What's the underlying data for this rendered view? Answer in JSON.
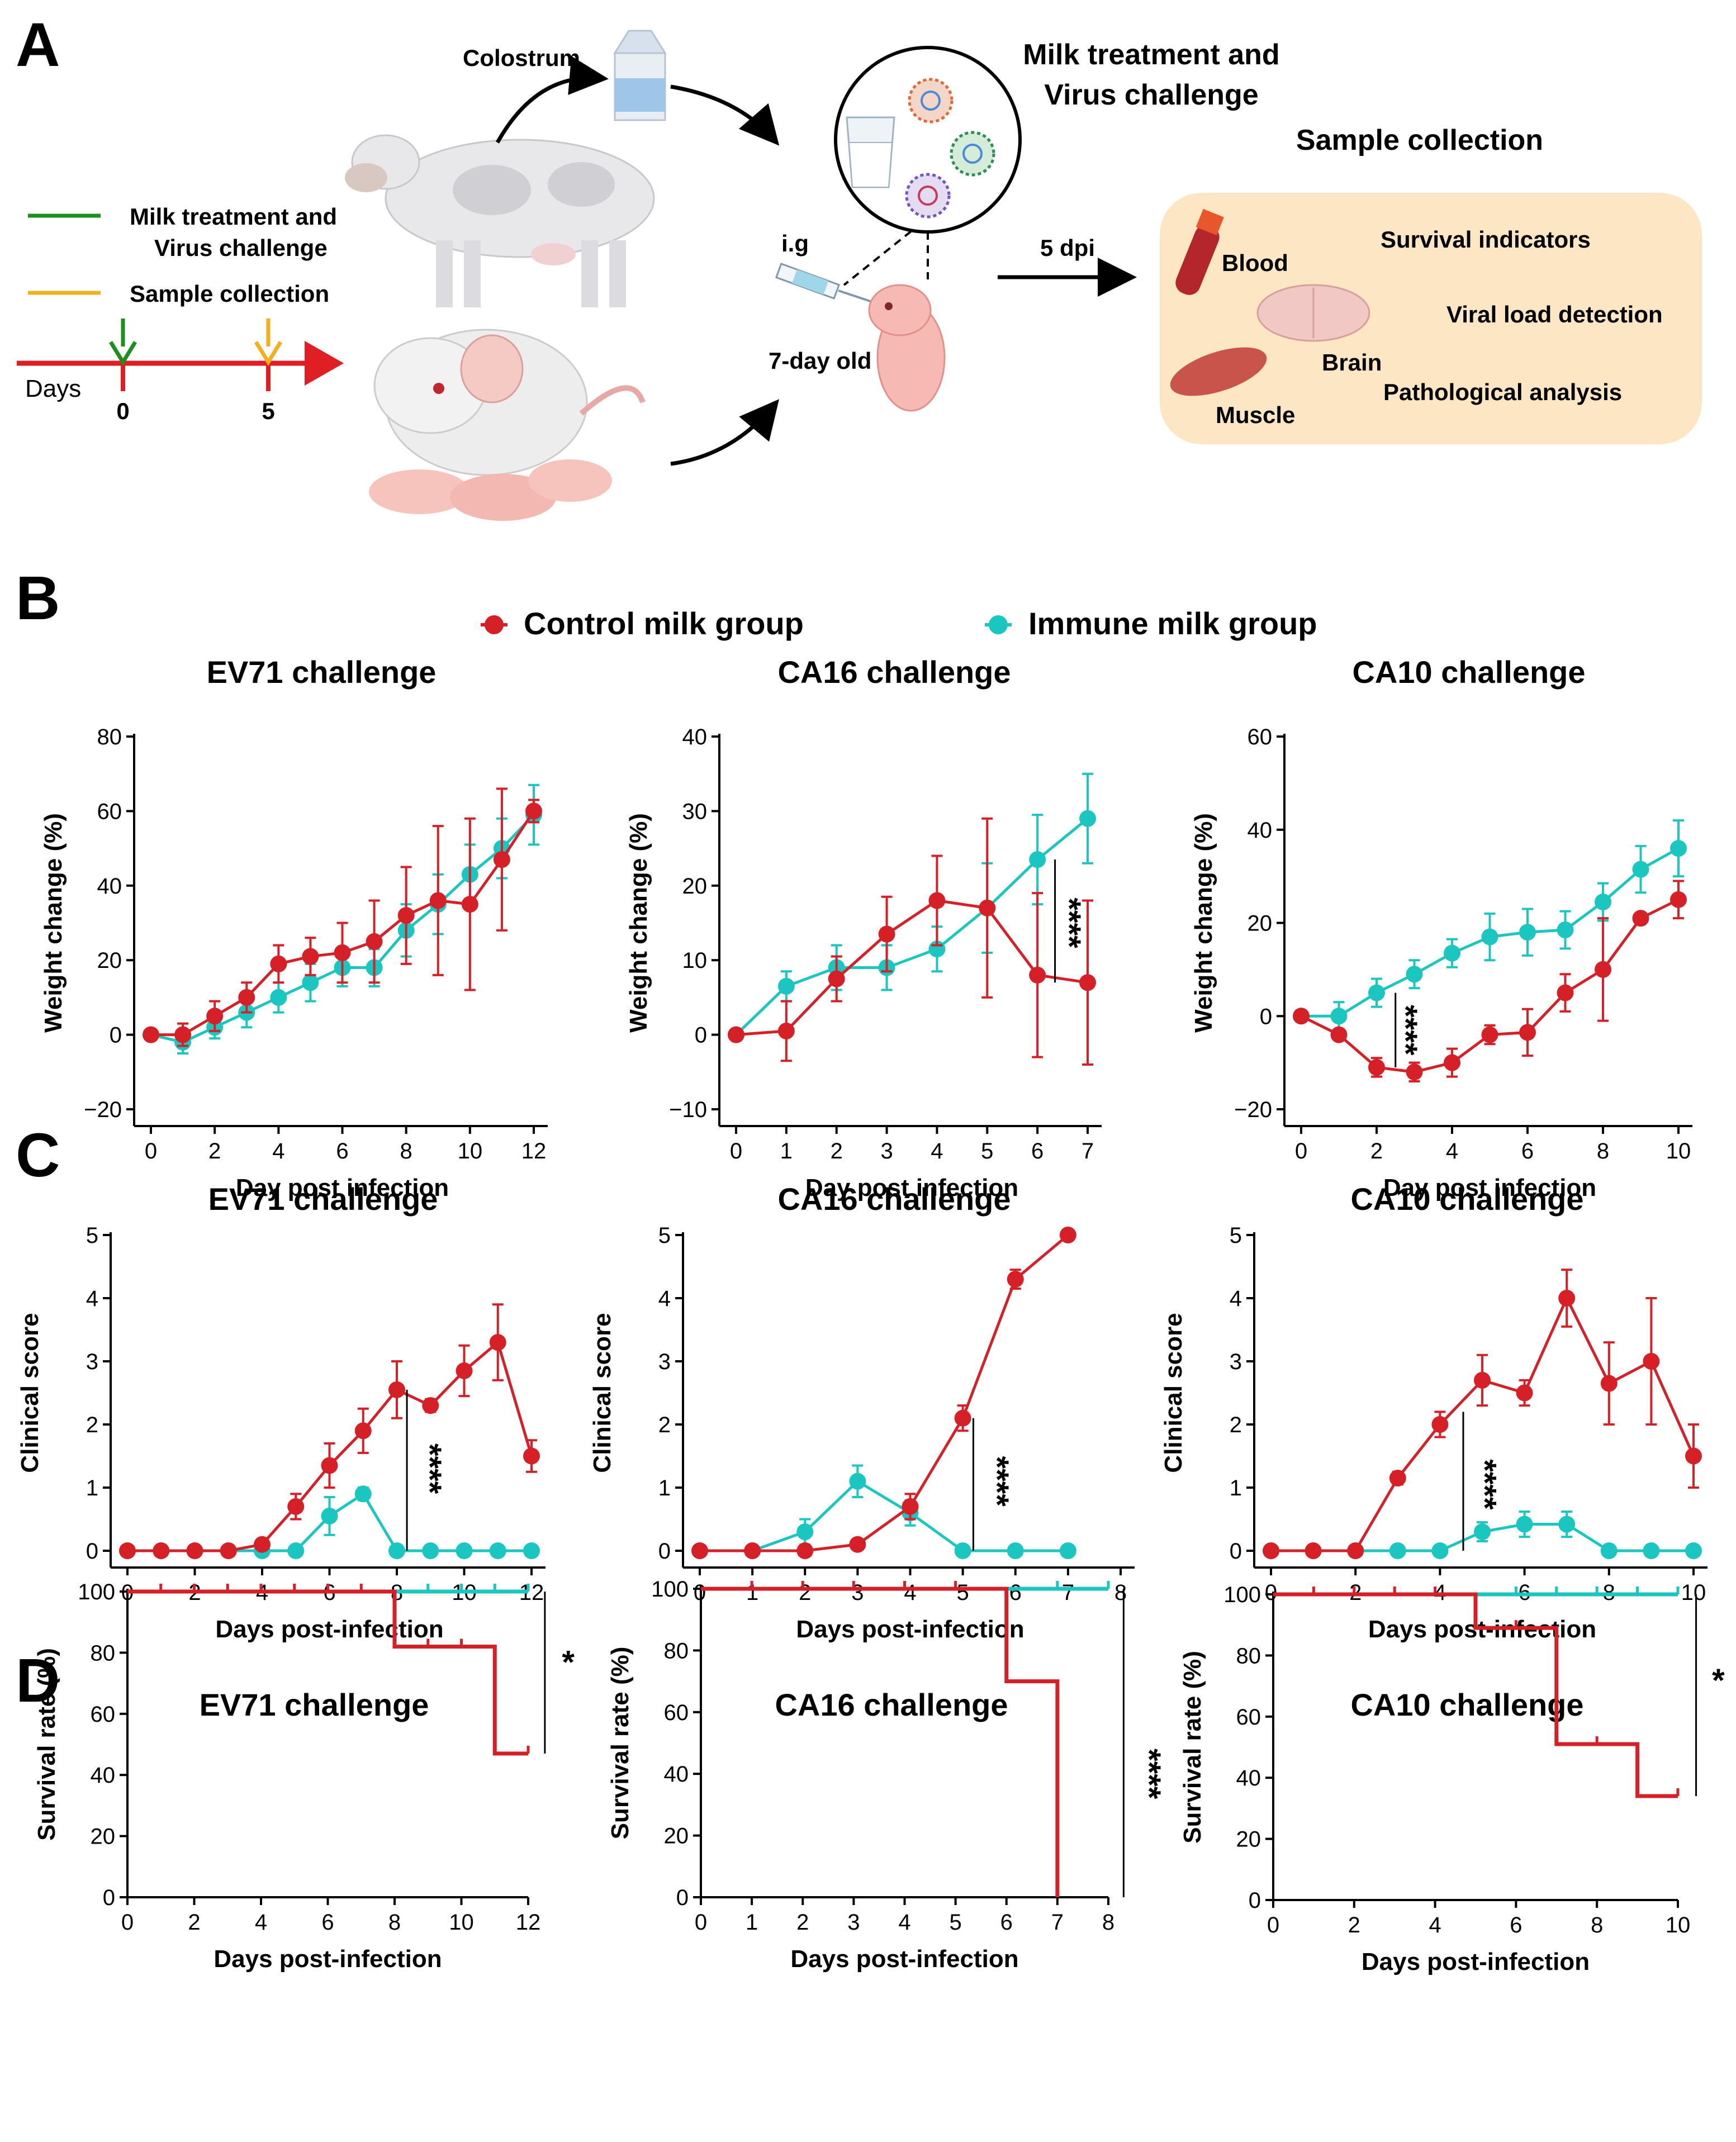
{
  "colors": {
    "control": "#d62028",
    "immune": "#1bc6c0",
    "axis": "#000000",
    "timeline_red": "#e01f25",
    "green_arrow": "#1e8f1e",
    "yellow_arrow": "#f2b01e",
    "panel_bg": "#fce6c4"
  },
  "panel_a": {
    "label": "A",
    "colostrum": "Colostrum",
    "legend_green": [
      "Milk treatment and",
      "Virus challenge"
    ],
    "legend_yellow": "Sample collection",
    "days_label": "Days",
    "day0": "0",
    "day5": "5",
    "milk_title": [
      "Milk treatment and",
      "Virus challenge"
    ],
    "ig": "i.g",
    "pup_age": "7-day old",
    "dpi": "5 dpi",
    "sample_title": "Sample collection",
    "samples": {
      "blood": "Blood",
      "brain": "Brain",
      "muscle": "Muscle",
      "survival": "Survival indicators",
      "viral": "Viral load detection",
      "pathology": "Pathological analysis"
    }
  },
  "legend": {
    "control": "Control milk group",
    "immune": "Immune milk group"
  },
  "row_labels": {
    "B": "B",
    "C": "C",
    "D": "D"
  },
  "chart_data": [
    {
      "id": "b1",
      "type": "line",
      "title": "EV71 challenge",
      "xlabel": "Day post infection",
      "ylabel": "Weight change (%)",
      "xlim": [
        0,
        12
      ],
      "xticks": [
        0,
        2,
        4,
        6,
        8,
        10,
        12
      ],
      "ylim": [
        -20,
        80
      ],
      "yticks": [
        -20,
        0,
        20,
        40,
        60,
        80
      ],
      "series": [
        {
          "name": "Control milk group",
          "x": [
            0,
            1,
            2,
            3,
            4,
            5,
            6,
            7,
            8,
            9,
            10,
            11,
            12
          ],
          "y": [
            0,
            0,
            5,
            10,
            19,
            21,
            22,
            25,
            32,
            36,
            35,
            47,
            60
          ],
          "err": [
            0,
            3,
            4,
            4,
            5,
            5,
            8,
            11,
            13,
            20,
            23,
            19,
            3
          ]
        },
        {
          "name": "Immune milk group",
          "x": [
            0,
            1,
            2,
            3,
            4,
            5,
            6,
            7,
            8,
            9,
            10,
            11,
            12
          ],
          "y": [
            0,
            -2,
            2,
            6,
            10,
            14,
            18,
            18,
            28,
            35,
            43,
            50,
            59
          ],
          "err": [
            0,
            3,
            3,
            4,
            4,
            5,
            5,
            5,
            7,
            8,
            8,
            8,
            8
          ]
        }
      ]
    },
    {
      "id": "b2",
      "type": "line",
      "title": "CA16 challenge",
      "xlabel": "Day post infection",
      "ylabel": "Weight change (%)",
      "xlim": [
        0,
        7
      ],
      "xticks": [
        0,
        1,
        2,
        3,
        4,
        5,
        6,
        7
      ],
      "ylim": [
        -10,
        40
      ],
      "yticks": [
        -10,
        0,
        10,
        20,
        30,
        40
      ],
      "annotation": "****",
      "series": [
        {
          "name": "Control milk group",
          "x": [
            0,
            1,
            2,
            3,
            4,
            5,
            6,
            7
          ],
          "y": [
            0,
            0.5,
            7.5,
            13.5,
            18,
            17,
            8,
            7
          ],
          "err": [
            0,
            4,
            3,
            5,
            6,
            12,
            11,
            11
          ]
        },
        {
          "name": "Immune milk group",
          "x": [
            0,
            1,
            2,
            3,
            4,
            5,
            6,
            7
          ],
          "y": [
            0,
            6.5,
            9,
            9,
            11.5,
            17,
            23.5,
            29
          ],
          "err": [
            0,
            2,
            3,
            3,
            3,
            6,
            6,
            6
          ]
        }
      ]
    },
    {
      "id": "b3",
      "type": "line",
      "title": "CA10 challenge",
      "xlabel": "Day post infection",
      "ylabel": "Weight change (%)",
      "xlim": [
        0,
        10
      ],
      "xticks": [
        0,
        2,
        4,
        6,
        8,
        10
      ],
      "ylim": [
        -20,
        60
      ],
      "yticks": [
        -20,
        0,
        20,
        40,
        60
      ],
      "annotation": "****",
      "series": [
        {
          "name": "Control milk group",
          "x": [
            0,
            1,
            2,
            3,
            4,
            5,
            6,
            7,
            8,
            9,
            10
          ],
          "y": [
            0,
            -4,
            -11,
            -12,
            -10,
            -4,
            -3.5,
            5,
            10,
            21,
            25
          ],
          "err": [
            0,
            1,
            2,
            2,
            3,
            2,
            5,
            4,
            11,
            1,
            4
          ]
        },
        {
          "name": "Immune milk group",
          "x": [
            0,
            1,
            2,
            3,
            4,
            5,
            6,
            7,
            8,
            9,
            10
          ],
          "y": [
            0,
            0,
            5,
            9,
            13.5,
            17,
            18,
            18.5,
            24.5,
            31.5,
            36
          ],
          "err": [
            0,
            3,
            3,
            3,
            3,
            5,
            5,
            4,
            4,
            5,
            6
          ]
        }
      ]
    },
    {
      "id": "c1",
      "type": "line",
      "title": "EV71 challenge",
      "xlabel": "Days post-infection",
      "ylabel": "Clinical score",
      "xlim": [
        0,
        12
      ],
      "xticks": [
        0,
        2,
        4,
        6,
        8,
        10,
        12
      ],
      "ylim": [
        0,
        5
      ],
      "yticks": [
        0,
        1,
        2,
        3,
        4,
        5
      ],
      "annotation": "****",
      "series": [
        {
          "name": "Control milk group",
          "x": [
            0,
            1,
            2,
            3,
            4,
            5,
            6,
            7,
            8,
            9,
            10,
            11,
            12
          ],
          "y": [
            0,
            0,
            0,
            0,
            0.1,
            0.7,
            1.35,
            1.9,
            2.55,
            2.3,
            2.85,
            3.3,
            1.5
          ],
          "err": [
            0,
            0,
            0,
            0,
            0.05,
            0.2,
            0.35,
            0.35,
            0.45,
            0.1,
            0.4,
            0.6,
            0.25
          ]
        },
        {
          "name": "Immune milk group",
          "x": [
            0,
            1,
            2,
            3,
            4,
            5,
            6,
            7,
            8,
            9,
            10,
            11,
            12
          ],
          "y": [
            0,
            0,
            0,
            0,
            0,
            0,
            0.55,
            0.9,
            0,
            0,
            0,
            0,
            0
          ],
          "err": [
            0,
            0,
            0,
            0,
            0,
            0,
            0.3,
            0.1,
            0,
            0,
            0,
            0,
            0
          ]
        }
      ]
    },
    {
      "id": "c2",
      "type": "line",
      "title": "CA16 challenge",
      "xlabel": "Days post-infection",
      "ylabel": "Clinical score",
      "xlim": [
        0,
        8
      ],
      "xticks": [
        0,
        1,
        2,
        3,
        4,
        5,
        6,
        7,
        8
      ],
      "ylim": [
        0,
        5
      ],
      "yticks": [
        0,
        1,
        2,
        3,
        4,
        5
      ],
      "annotation": "****",
      "series": [
        {
          "name": "Control milk group",
          "x": [
            0,
            1,
            2,
            3,
            4,
            5,
            6,
            7
          ],
          "y": [
            0,
            0,
            0,
            0.1,
            0.7,
            2.1,
            4.3,
            5
          ],
          "err": [
            0,
            0,
            0,
            0,
            0.2,
            0.2,
            0.15,
            0
          ]
        },
        {
          "name": "Immune milk group",
          "x": [
            0,
            1,
            2,
            3,
            4,
            5,
            6,
            7
          ],
          "y": [
            0,
            0,
            0.3,
            1.1,
            0.6,
            0,
            0,
            0
          ],
          "err": [
            0,
            0,
            0.2,
            0.25,
            0.2,
            0,
            0,
            0
          ]
        }
      ]
    },
    {
      "id": "c3",
      "type": "line",
      "title": "CA10 challenge",
      "xlabel": "Days post-infection",
      "ylabel": "Clinical score",
      "xlim": [
        0,
        10
      ],
      "xticks": [
        0,
        2,
        4,
        6,
        8,
        10
      ],
      "ylim": [
        0,
        5
      ],
      "yticks": [
        0,
        1,
        2,
        3,
        4,
        5
      ],
      "annotation": "****",
      "series": [
        {
          "name": "Control milk group",
          "x": [
            0,
            1,
            2,
            3,
            4,
            5,
            6,
            7,
            8,
            9,
            10
          ],
          "y": [
            0,
            0,
            0,
            1.15,
            2,
            2.7,
            2.5,
            4,
            2.65,
            3,
            1.5
          ],
          "err": [
            0,
            0,
            0,
            0.1,
            0.2,
            0.4,
            0.2,
            0.45,
            0.65,
            1,
            0.5
          ]
        },
        {
          "name": "Immune milk group",
          "x": [
            0,
            1,
            2,
            3,
            4,
            5,
            6,
            7,
            8,
            9,
            10
          ],
          "y": [
            0,
            0,
            0,
            0,
            0,
            0.3,
            0.42,
            0.42,
            0,
            0,
            0
          ],
          "err": [
            0,
            0,
            0,
            0,
            0,
            0.15,
            0.2,
            0.2,
            0,
            0,
            0
          ]
        }
      ]
    },
    {
      "id": "d1",
      "type": "step",
      "title": "EV71 challenge",
      "xlabel": "Days post-infection",
      "ylabel": "Survival rate (%)",
      "xlim": [
        0,
        12
      ],
      "xticks": [
        0,
        2,
        4,
        6,
        8,
        10,
        12
      ],
      "ylim": [
        0,
        100
      ],
      "yticks": [
        0,
        20,
        40,
        60,
        80,
        100
      ],
      "annotation": "*",
      "series": [
        {
          "name": "Control milk group",
          "steps": [
            [
              0,
              100
            ],
            [
              8,
              82
            ],
            [
              11,
              47
            ],
            [
              12,
              47
            ]
          ],
          "censor": [
            1,
            2,
            3,
            4,
            5,
            6,
            7,
            9,
            10,
            12
          ]
        },
        {
          "name": "Immune milk group",
          "steps": [
            [
              8,
              100
            ],
            [
              12,
              100
            ]
          ],
          "censor": [
            9,
            10,
            11,
            12
          ]
        }
      ]
    },
    {
      "id": "d2",
      "type": "step",
      "title": "CA16 challenge",
      "xlabel": "Days post-infection",
      "ylabel": "Survival rate (%)",
      "xlim": [
        0,
        8
      ],
      "xticks": [
        0,
        1,
        2,
        3,
        4,
        5,
        6,
        7,
        8
      ],
      "ylim": [
        0,
        100
      ],
      "yticks": [
        0,
        20,
        40,
        60,
        80,
        100
      ],
      "annotation": "****",
      "series": [
        {
          "name": "Control milk group",
          "steps": [
            [
              0,
              100
            ],
            [
              6,
              70
            ],
            [
              7,
              0
            ]
          ],
          "censor": [
            1,
            2,
            3,
            4,
            5
          ]
        },
        {
          "name": "Immune milk group",
          "steps": [
            [
              6,
              100
            ],
            [
              8,
              100
            ]
          ],
          "censor": [
            7,
            8
          ]
        }
      ]
    },
    {
      "id": "d3",
      "type": "step",
      "title": "CA10 challenge",
      "xlabel": "Days post-infection",
      "ylabel": "Survival rate (%)",
      "xlim": [
        0,
        10
      ],
      "xticks": [
        0,
        2,
        4,
        6,
        8,
        10
      ],
      "ylim": [
        0,
        100
      ],
      "yticks": [
        0,
        20,
        40,
        60,
        80,
        100
      ],
      "annotation": "*",
      "series": [
        {
          "name": "Control milk group",
          "steps": [
            [
              0,
              100
            ],
            [
              5,
              89
            ],
            [
              7,
              51
            ],
            [
              9,
              34
            ],
            [
              10,
              34
            ]
          ],
          "censor": [
            1,
            2,
            3,
            4,
            6,
            8,
            10
          ]
        },
        {
          "name": "Immune milk group",
          "steps": [
            [
              5,
              100
            ],
            [
              10,
              100
            ]
          ],
          "censor": [
            6,
            7,
            8,
            9,
            10
          ]
        }
      ]
    }
  ]
}
